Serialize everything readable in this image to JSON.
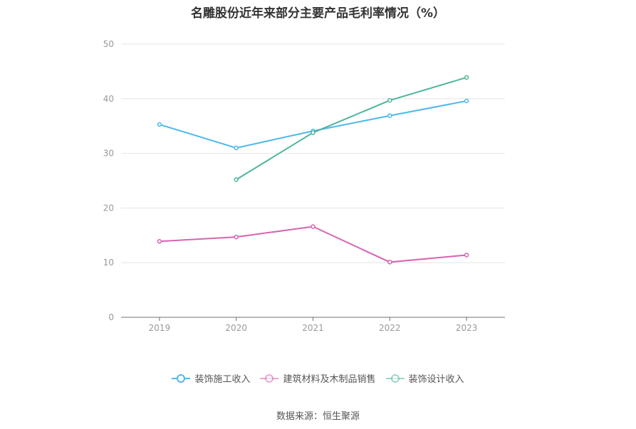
{
  "title": "名雕股份近年来部分主要产品毛利率情况（%）",
  "source": "数据来源：恒生聚源",
  "chart_data": {
    "type": "line",
    "categories": [
      "2019",
      "2020",
      "2021",
      "2022",
      "2023"
    ],
    "ylim": [
      0,
      50
    ],
    "yticks": [
      0,
      10,
      20,
      30,
      40,
      50
    ],
    "grid": true,
    "legend_position": "bottom",
    "series": [
      {
        "name": "装饰施工收入",
        "color": "#4db8ec",
        "values": [
          35.3,
          31.0,
          34.1,
          36.9,
          39.6
        ]
      },
      {
        "name": "建筑材料及木制品销售",
        "color": "#d863b0",
        "values": [
          13.9,
          14.7,
          16.6,
          10.1,
          11.4
        ]
      },
      {
        "name": "装饰设计收入",
        "color": "#4fb59c",
        "values": [
          null,
          25.2,
          33.8,
          39.7,
          43.9
        ]
      }
    ]
  }
}
